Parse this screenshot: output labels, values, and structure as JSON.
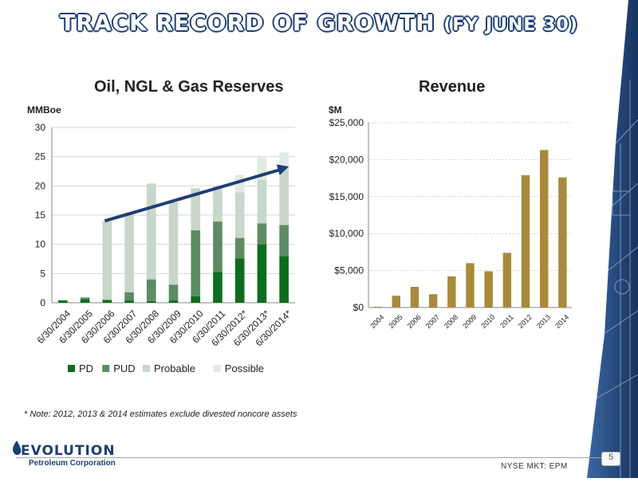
{
  "slide": {
    "title_main": "TRACK RECORD OF GROWTH",
    "title_sub": "(FY JUNE 30)",
    "note": "* Note: 2012, 2013 & 2014 estimates exclude divested noncore assets",
    "ticker": "NYSE MKT: EPM",
    "page_number": "5",
    "logo_main": "EVOLUTION",
    "logo_sub": "Petroleum Corporation"
  },
  "colors": {
    "pd": "#0e6d1c",
    "pud": "#5e8c62",
    "probable": "#c9d6cb",
    "possible": "#e2ebe3",
    "revenue": "#a88a3a",
    "trend_arrow": "#1f3e73",
    "title": "#1f3e73"
  },
  "chart_data": [
    {
      "type": "bar",
      "stacked": true,
      "title": "Oil, NGL & Gas Reserves",
      "ylabel": "MMBoe",
      "ylim": [
        0,
        30
      ],
      "yticks": [
        "0",
        "5",
        "10",
        "15",
        "20",
        "25",
        "30"
      ],
      "grid": true,
      "legend_position": "bottom",
      "categories": [
        "6/30/2004",
        "6/30/2005",
        "6/30/2006",
        "6/30/2007",
        "6/30/2008",
        "6/30/2009",
        "6/30/2010",
        "6/30/2011",
        "6/30/2012*",
        "6/30/2013*",
        "6/30/2014*"
      ],
      "series": [
        {
          "name": "PD",
          "values": [
            0.4,
            0.6,
            0.5,
            0.4,
            0.3,
            0.4,
            1.1,
            5.3,
            7.6,
            10.0,
            8.0
          ]
        },
        {
          "name": "PUD",
          "values": [
            0,
            0.3,
            0,
            1.4,
            3.7,
            2.7,
            11.3,
            8.6,
            3.5,
            3.6,
            5.3
          ]
        },
        {
          "name": "Probable",
          "values": [
            0,
            0,
            13.4,
            13.3,
            16.4,
            14.1,
            7.2,
            6.0,
            7.8,
            7.5,
            10.0
          ]
        },
        {
          "name": "Possible",
          "values": [
            0,
            0,
            0,
            0,
            0,
            0,
            0,
            0,
            3.0,
            3.8,
            2.4
          ]
        }
      ],
      "trend_arrow": {
        "from": [
          "6/30/2006",
          14.0
        ],
        "to": [
          "6/30/2014*",
          23.3
        ]
      }
    },
    {
      "type": "bar",
      "title": "Revenue",
      "ylabel": "$M",
      "ylim": [
        0,
        25000
      ],
      "yticks": [
        "$0",
        "$5,000",
        "$10,000",
        "$15,000",
        "$20,000",
        "$25,000"
      ],
      "grid": true,
      "categories": [
        "2004",
        "2005",
        "2006",
        "2007",
        "2008",
        "2009",
        "2010",
        "2011",
        "2012",
        "2013",
        "2014"
      ],
      "values": [
        100,
        1600,
        2800,
        1800,
        4200,
        6000,
        4900,
        7400,
        17900,
        21300,
        17600
      ]
    }
  ]
}
